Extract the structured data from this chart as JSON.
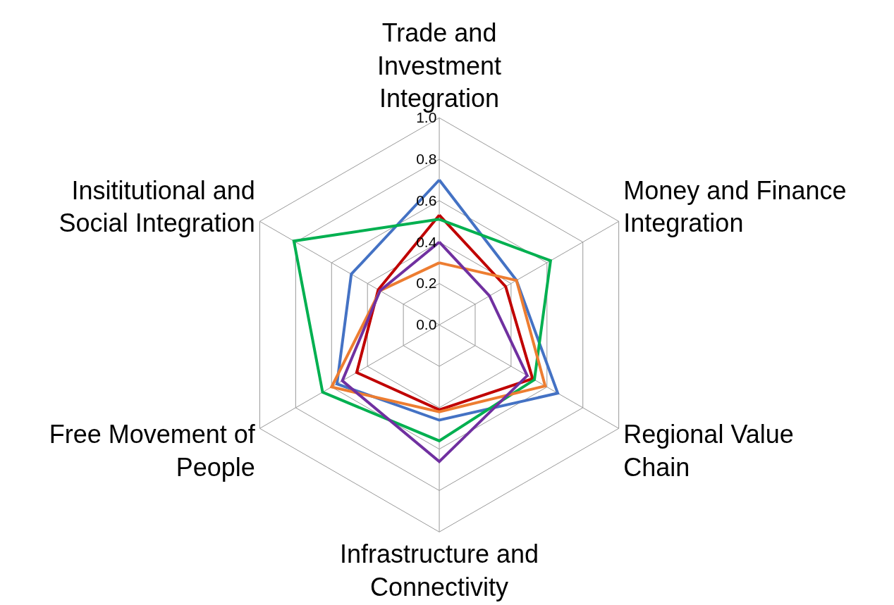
{
  "chart_data": {
    "type": "radar",
    "categories": [
      "Trade and Investment Integration",
      "Money and Finance Integration",
      "Regional Value Chain",
      "Infrastructure and Connectivity",
      "Free Movement of People",
      "Insititutional and Social Integration"
    ],
    "series": [
      {
        "color": "#4472c4",
        "values": [
          0.7,
          0.43,
          0.66,
          0.46,
          0.57,
          0.49
        ]
      },
      {
        "color": "#c00000",
        "values": [
          0.53,
          0.37,
          0.52,
          0.41,
          0.46,
          0.34
        ]
      },
      {
        "color": "#00b050",
        "values": [
          0.51,
          0.62,
          0.53,
          0.56,
          0.65,
          0.81
        ]
      },
      {
        "color": "#ed7d31",
        "values": [
          0.3,
          0.43,
          0.59,
          0.42,
          0.6,
          0.33
        ]
      },
      {
        "color": "#7030a0",
        "values": [
          0.4,
          0.28,
          0.49,
          0.66,
          0.54,
          0.33
        ]
      }
    ],
    "ylim": [
      0,
      1
    ],
    "yticks": [
      {
        "value": 0,
        "label": "0.0"
      },
      {
        "value": 0.2,
        "label": "0.2"
      },
      {
        "value": 0.4,
        "label": "0.4"
      },
      {
        "value": 0.6,
        "label": "0.6"
      },
      {
        "value": 0.8,
        "label": "0.8"
      },
      {
        "value": 1,
        "label": "1.0"
      }
    ],
    "grid": true,
    "marker": "none",
    "line_style": "solid"
  }
}
